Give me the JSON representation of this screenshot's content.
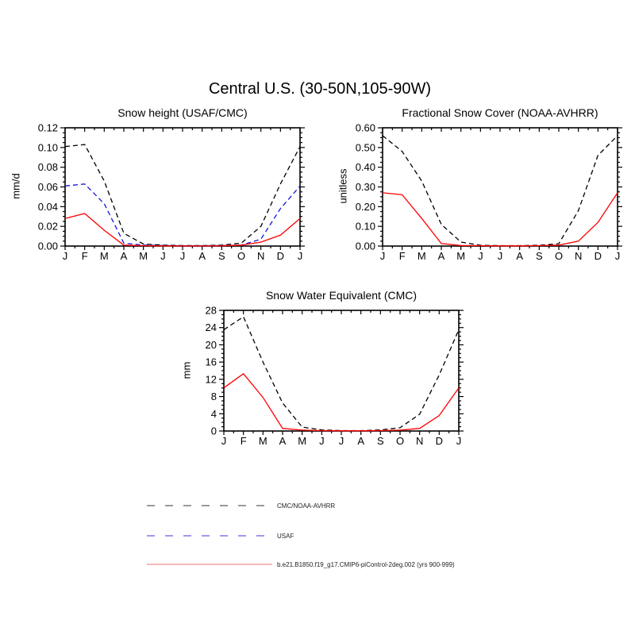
{
  "main_title": "Central U.S. (30-50N,105-90W)",
  "chart_data": [
    {
      "id": "snow-height",
      "type": "line",
      "title": "Snow height (USAF/CMC)",
      "ylabel": "mm/d",
      "ylim": [
        0,
        0.12
      ],
      "ytick_labels": [
        "0.00",
        "0.02",
        "0.04",
        "0.06",
        "0.08",
        "0.10",
        "0.12"
      ],
      "grid": false,
      "categories": [
        "J",
        "F",
        "M",
        "A",
        "M",
        "J",
        "J",
        "A",
        "S",
        "O",
        "N",
        "D",
        "J"
      ],
      "series": [
        {
          "name": "CMC/NOAA-AVHRR",
          "color": "#000000",
          "dashed": true,
          "values": [
            0.101,
            0.103,
            0.066,
            0.013,
            0.002,
            0.001,
            0.0005,
            0.0005,
            0.001,
            0.003,
            0.02,
            0.063,
            0.101
          ]
        },
        {
          "name": "USAF",
          "color": "#1515e0",
          "dashed": true,
          "values": [
            0.061,
            0.063,
            0.043,
            0.003,
            0.001,
            0.0005,
            0.0003,
            0.0003,
            0.0005,
            0.001,
            0.007,
            0.038,
            0.061
          ]
        },
        {
          "name": "b.e21.B1850.f19_g17.CMIP6-piControl-2deg.002 (yrs 900-999)",
          "color": "#ff0000",
          "dashed": false,
          "values": [
            0.028,
            0.033,
            0.016,
            0.001,
            0.0004,
            0.0002,
            0.0001,
            0.0001,
            0.0003,
            0.001,
            0.004,
            0.011,
            0.028
          ]
        }
      ]
    },
    {
      "id": "fractional-snow-cover",
      "type": "line",
      "title": "Fractional Snow Cover (NOAA-AVHRR)",
      "ylabel": "unitless",
      "ylim": [
        0,
        0.6
      ],
      "ytick_labels": [
        "0.00",
        "0.10",
        "0.20",
        "0.30",
        "0.40",
        "0.50",
        "0.60"
      ],
      "grid": false,
      "categories": [
        "J",
        "F",
        "M",
        "A",
        "M",
        "J",
        "J",
        "A",
        "S",
        "O",
        "N",
        "D",
        "J"
      ],
      "series": [
        {
          "name": "CMC/NOAA-AVHRR",
          "color": "#000000",
          "dashed": true,
          "values": [
            0.56,
            0.48,
            0.33,
            0.11,
            0.02,
            0.004,
            0.002,
            0.002,
            0.004,
            0.012,
            0.18,
            0.46,
            0.56
          ]
        },
        {
          "name": "b.e21.B1850.f19_g17.CMIP6-piControl-2deg.002 (yrs 900-999)",
          "color": "#ff0000",
          "dashed": false,
          "values": [
            0.27,
            0.26,
            0.14,
            0.013,
            0.003,
            0.002,
            0.001,
            0.001,
            0.002,
            0.005,
            0.025,
            0.12,
            0.27
          ]
        }
      ]
    },
    {
      "id": "snow-water-equivalent",
      "type": "line",
      "title": "Snow Water Equivalent (CMC)",
      "ylabel": "mm",
      "ylim": [
        0,
        28
      ],
      "ytick_labels": [
        "0",
        "4",
        "8",
        "12",
        "16",
        "20",
        "24",
        "28"
      ],
      "grid": false,
      "categories": [
        "J",
        "F",
        "M",
        "A",
        "M",
        "J",
        "J",
        "A",
        "S",
        "O",
        "N",
        "D",
        "J"
      ],
      "series": [
        {
          "name": "CMC",
          "color": "#000000",
          "dashed": true,
          "values": [
            23.5,
            26.5,
            16,
            6.5,
            0.9,
            0.25,
            0.1,
            0.1,
            0.25,
            0.75,
            3.9,
            13,
            23.5
          ]
        },
        {
          "name": "b.e21.B1850.f19_g17.CMIP6-piControl-2deg.002 (yrs 900-999)",
          "color": "#ff0000",
          "dashed": false,
          "values": [
            10,
            13.3,
            7.8,
            0.6,
            0.2,
            0.1,
            0.05,
            0.05,
            0.1,
            0.2,
            0.6,
            3.6,
            10
          ]
        }
      ]
    }
  ],
  "legend": {
    "entries": [
      {
        "label": "CMC/NOAA-AVHRR",
        "style": "dashed",
        "color": "#9a9a9a"
      },
      {
        "label": "USAF",
        "style": "dashed",
        "color": "#9b9bf0"
      },
      {
        "label": "b.e21.B1850.f19_g17.CMIP6-piControl-2deg.002 (yrs 900-999)",
        "style": "solid",
        "color": "#f5a0a0"
      }
    ]
  }
}
